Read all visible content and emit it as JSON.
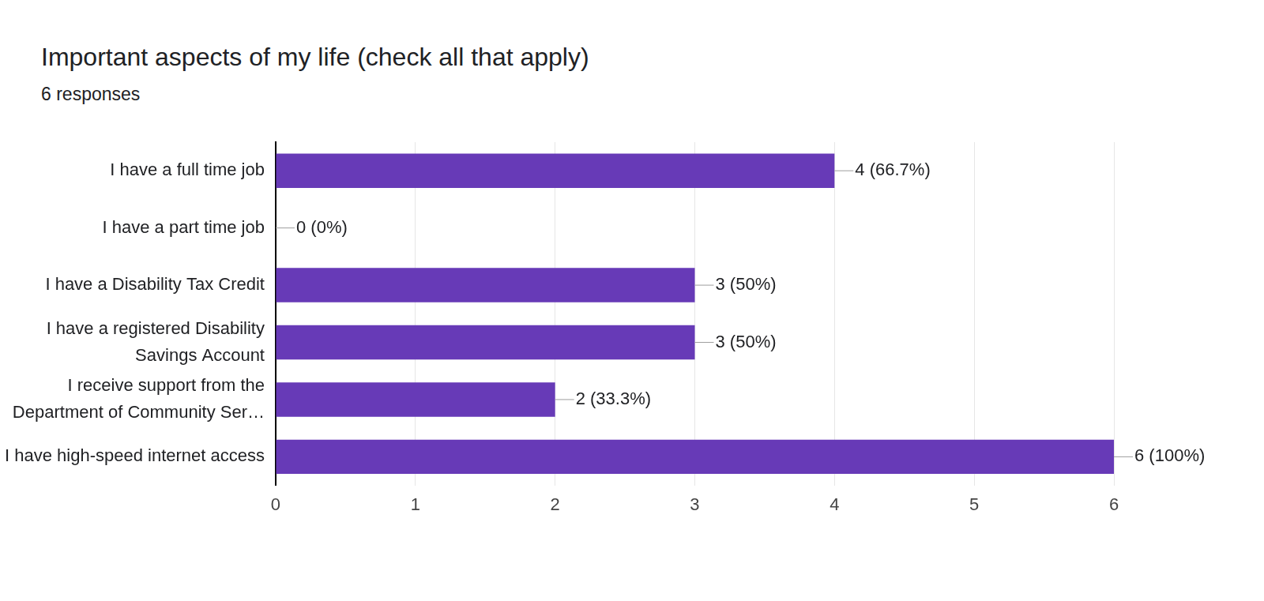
{
  "chart_data": {
    "type": "bar",
    "title": "Important aspects of my life (check all that apply)",
    "subtitle": "6 responses",
    "categories": [
      "I have a full time job",
      "I have a part time job",
      "I have a Disability Tax Credit",
      "I have a registered Disability Savings Account",
      "I receive support from the Department of Community Ser…",
      "I have high-speed internet access"
    ],
    "values": [
      4,
      0,
      3,
      3,
      2,
      6
    ],
    "value_labels": [
      "4 (66.7%)",
      "0 (0%)",
      "3 (50%)",
      "3 (50%)",
      "2 (33.3%)",
      "6 (100%)"
    ],
    "color": "#673ab7",
    "orientation": "horizontal",
    "data_labels": true,
    "xlim": [
      0,
      6
    ],
    "xticks": [
      0,
      1,
      2,
      3,
      4,
      5,
      6
    ],
    "grid": true
  }
}
